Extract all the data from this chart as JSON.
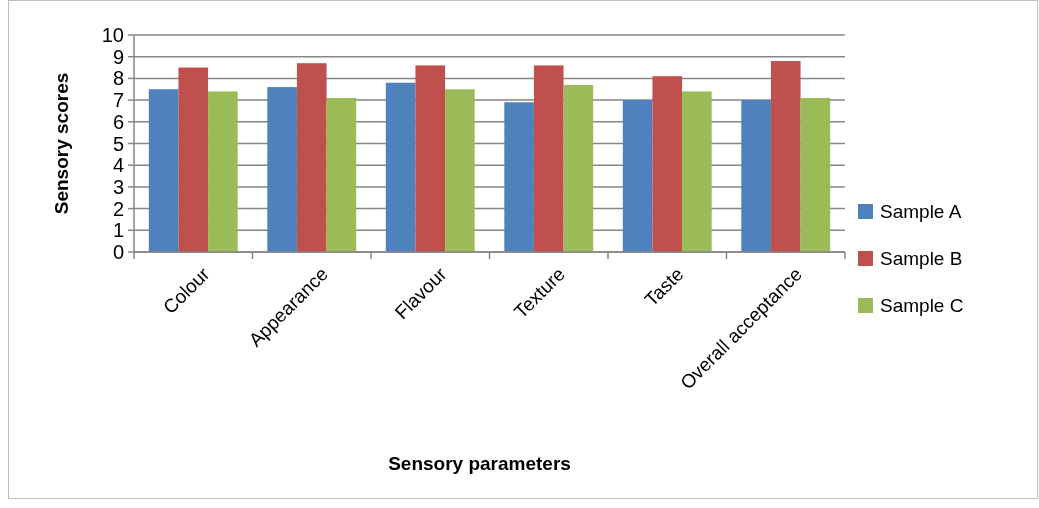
{
  "chart_data": {
    "type": "bar",
    "xlabel": "Sensory parameters",
    "ylabel": "Sensory scores",
    "categories": [
      "Colour",
      "Appearance",
      "Flavour",
      "Texture",
      "Taste",
      "Overall acceptance"
    ],
    "series": [
      {
        "name": "Sample A",
        "color": "#4f81bd",
        "values": [
          7.5,
          7.6,
          7.8,
          6.9,
          7.0,
          7.0
        ]
      },
      {
        "name": "Sample B",
        "color": "#c0504d",
        "values": [
          8.5,
          8.7,
          8.6,
          8.6,
          8.1,
          8.8
        ]
      },
      {
        "name": "Sample C",
        "color": "#9bbb59",
        "values": [
          7.4,
          7.1,
          7.5,
          7.7,
          7.4,
          7.1
        ]
      }
    ],
    "ylim": [
      0,
      10
    ],
    "yticks": [
      0,
      1,
      2,
      3,
      4,
      5,
      6,
      7,
      8,
      9,
      10
    ],
    "grid": "y",
    "legend": "right"
  }
}
